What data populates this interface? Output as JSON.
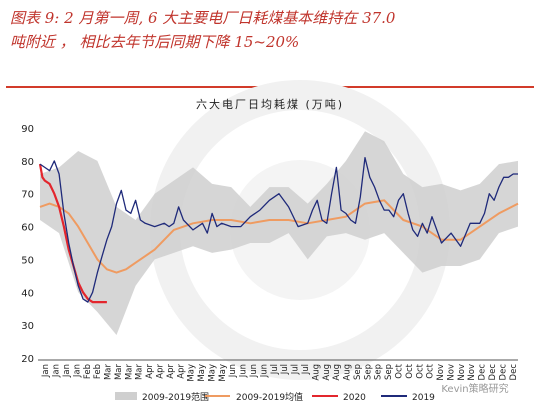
{
  "page": {
    "title_line1": "图表 9: 2 月第一周, 6 大主要电厂日耗煤基本维持在 37.0",
    "title_line2": "吨附近 ， 相比去年节后同期下降 15~20%"
  },
  "watermark": "Kevin策略研究",
  "colors": {
    "range": "#cfcfcf",
    "avg": "#ef9b61",
    "y2020": "#e3262d",
    "y2019": "#1f2a7a"
  },
  "chart_data": {
    "type": "line",
    "title": "六大电厂日均耗煤 (万吨)",
    "ylim": [
      20,
      90
    ],
    "yticks": [
      20,
      30,
      40,
      50,
      60,
      70,
      80,
      90
    ],
    "months": [
      "Jan",
      "Jan",
      "Jan",
      "Jan",
      "Feb",
      "Feb",
      "Mar",
      "Mar",
      "Mar",
      "Mar",
      "Apr",
      "Apr",
      "Apr",
      "Apr",
      "May",
      "May",
      "May",
      "May",
      "Jun",
      "Jun",
      "Jun",
      "Jun",
      "Jul",
      "Jul",
      "Jul",
      "Jul",
      "Aug",
      "Aug",
      "Aug",
      "Aug",
      "Sep",
      "Sep",
      "Sep",
      "Sep",
      "Oct",
      "Oct",
      "Oct",
      "Oct",
      "Nov",
      "Nov",
      "Nov",
      "Nov",
      "Dec",
      "Dec",
      "Dec",
      "Dec"
    ],
    "legend": [
      "2009-2019范围",
      "2009-2019均值",
      "2020",
      "2019"
    ],
    "x": [
      0,
      4,
      8,
      12,
      16,
      20,
      24,
      28,
      32,
      36,
      40,
      44,
      48,
      52,
      56,
      60,
      64,
      68,
      72,
      76,
      80,
      84,
      88,
      92,
      96,
      100
    ],
    "range_high": [
      76,
      78,
      83,
      80,
      66,
      62,
      70,
      74,
      78,
      73,
      72,
      66,
      72,
      72,
      67,
      73,
      80,
      89,
      86,
      76,
      72,
      73,
      71,
      73,
      79,
      80
    ],
    "range_low": [
      62,
      58,
      40,
      34,
      27,
      42,
      50,
      52,
      54,
      52,
      53,
      55,
      55,
      58,
      50,
      57,
      58,
      56,
      58,
      52,
      46,
      48,
      48,
      50,
      58,
      60
    ],
    "series": [
      {
        "name": "2009-2019均值",
        "x": [
          0,
          2,
          4,
          6,
          8,
          10,
          12,
          14,
          16,
          18,
          20,
          24,
          28,
          32,
          36,
          40,
          44,
          48,
          52,
          56,
          60,
          64,
          68,
          72,
          76,
          80,
          84,
          88,
          92,
          96,
          100
        ],
        "values": [
          66,
          67,
          66,
          64,
          60,
          55,
          50,
          47,
          46,
          47,
          49,
          53,
          59,
          61,
          62,
          62,
          61,
          62,
          62,
          61,
          62,
          63,
          67,
          68,
          62,
          60,
          56,
          56,
          60,
          64,
          67
        ]
      },
      {
        "name": "2020",
        "x": [
          0,
          0.5,
          1,
          2,
          3,
          4,
          5,
          6,
          7,
          8,
          9,
          10,
          11,
          12,
          13,
          14
        ],
        "values": [
          79,
          75,
          74,
          73,
          70,
          66,
          60,
          53,
          48,
          43,
          40,
          38,
          37,
          37,
          37,
          37
        ]
      },
      {
        "name": "2019",
        "x": [
          0,
          1,
          2,
          3,
          4,
          5,
          6,
          7,
          8,
          9,
          10,
          11,
          12,
          13,
          14,
          15,
          16,
          17,
          18,
          19,
          20,
          21,
          22,
          24,
          26,
          27,
          28,
          29,
          30,
          32,
          34,
          35,
          36,
          37,
          38,
          40,
          42,
          44,
          46,
          48,
          50,
          52,
          54,
          56,
          57,
          58,
          59,
          60,
          61,
          62,
          63,
          64,
          65,
          66,
          67,
          68,
          69,
          70,
          71,
          72,
          73,
          74,
          75,
          76,
          77,
          78,
          79,
          80,
          81,
          82,
          84,
          86,
          88,
          90,
          92,
          93,
          94,
          95,
          96,
          97,
          98,
          99,
          100
        ],
        "values": [
          79,
          78,
          77,
          80,
          76,
          64,
          55,
          48,
          42,
          38,
          37,
          40,
          46,
          51,
          56,
          60,
          67,
          71,
          65,
          64,
          68,
          62,
          61,
          60,
          61,
          60,
          61,
          66,
          62,
          59,
          61,
          58,
          64,
          60,
          61,
          60,
          60,
          63,
          65,
          68,
          70,
          66,
          60,
          61,
          65,
          68,
          62,
          61,
          70,
          78,
          65,
          64,
          62,
          61,
          69,
          81,
          75,
          72,
          68,
          65,
          65,
          63,
          68,
          70,
          64,
          59,
          57,
          61,
          58,
          63,
          55,
          58,
          54,
          61,
          61,
          64,
          70,
          68,
          72,
          75,
          75,
          76,
          76
        ]
      }
    ]
  }
}
